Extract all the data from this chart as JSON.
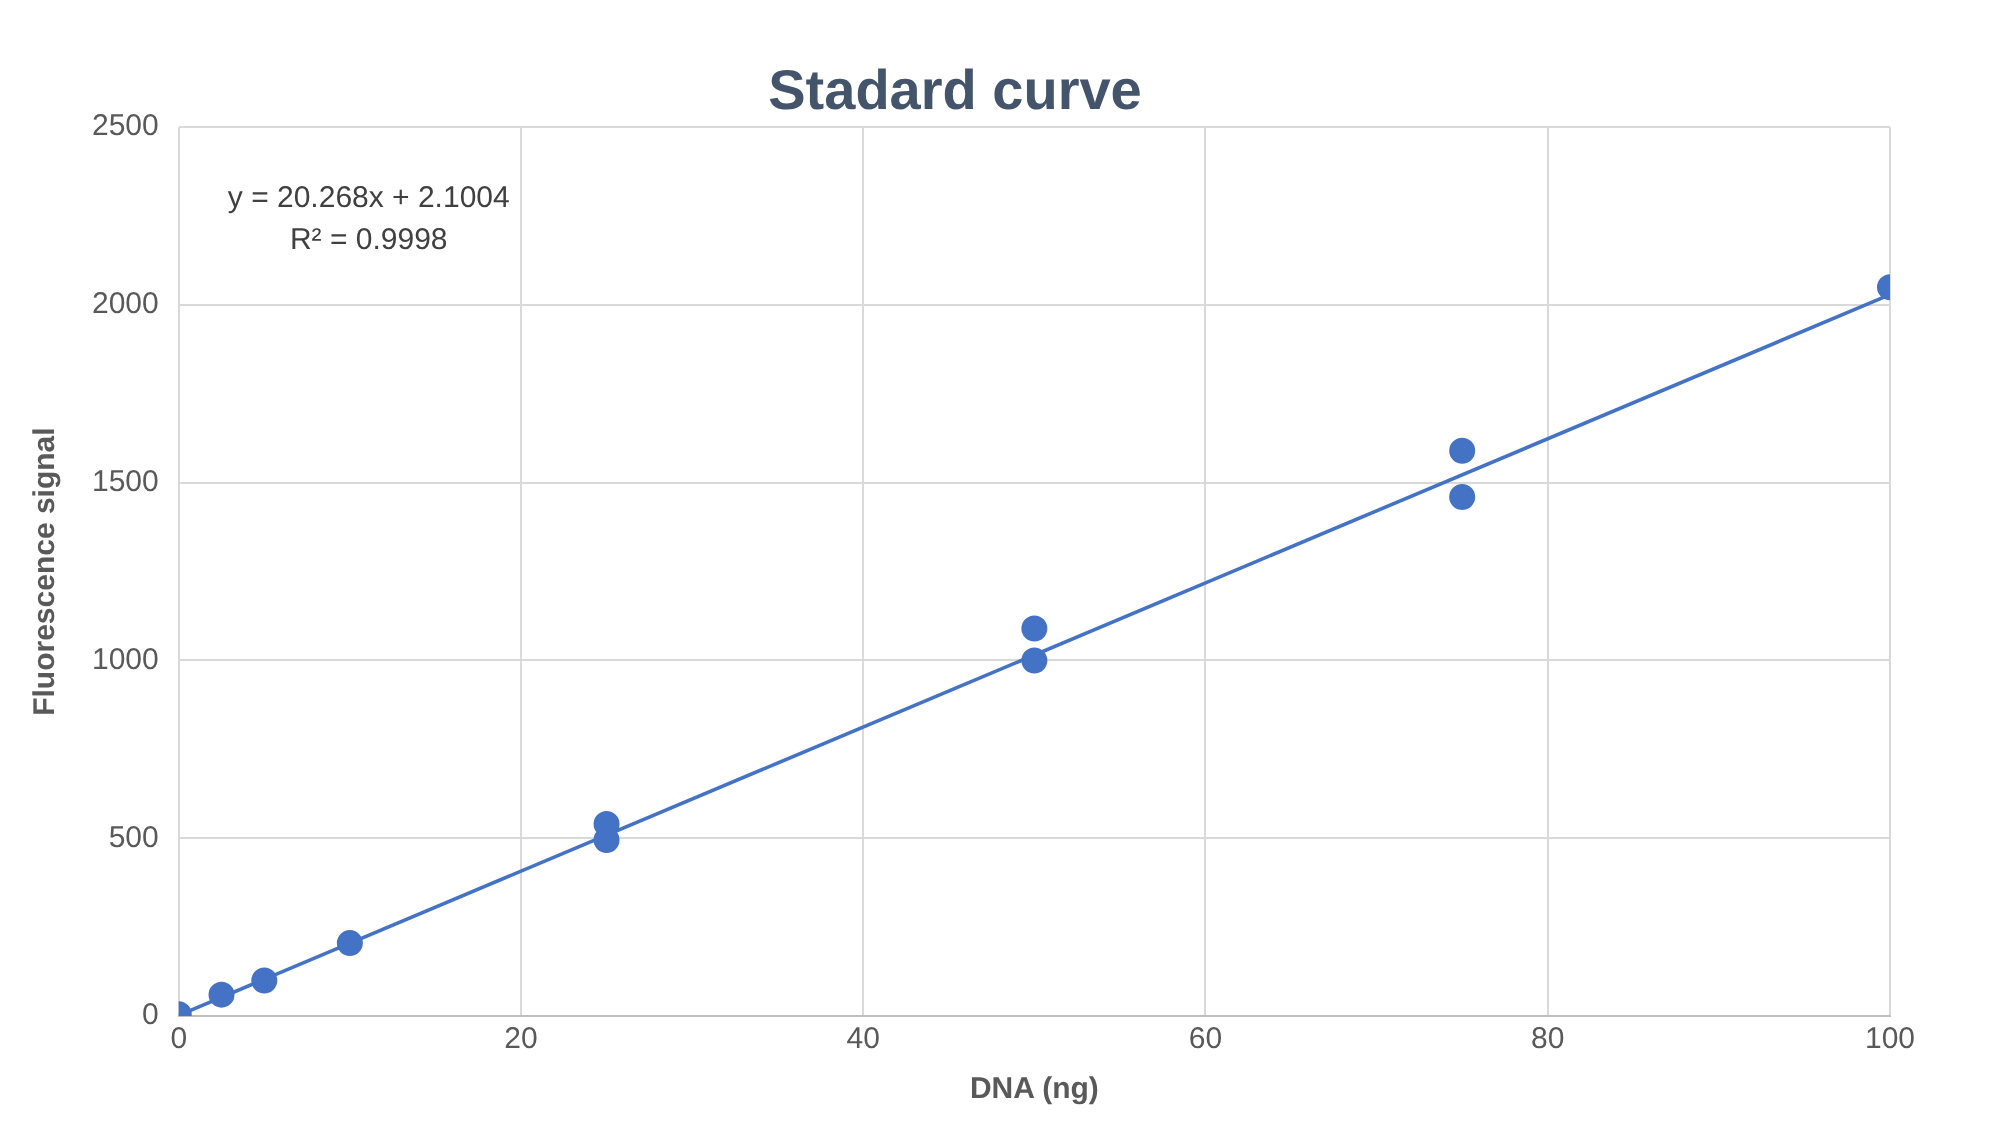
{
  "chart_data": {
    "type": "scatter",
    "title": "Stadard curve",
    "xlabel": "DNA (ng)",
    "ylabel": "Fluorescence signal",
    "annotations": [
      "y = 20.268x + 2.1004",
      "R² = 0.9998"
    ],
    "series": [
      {
        "color": "#4472c4",
        "marker": "circle",
        "x": [
          0,
          2.5,
          5,
          10,
          25,
          25,
          50,
          50,
          75,
          75,
          100
        ],
        "values": [
          5,
          60,
          100,
          205,
          540,
          495,
          1090,
          1000,
          1590,
          1460,
          2050
        ]
      },
      {
        "type": "line",
        "color": "#4472c4",
        "marker": "none",
        "x": [
          0,
          100
        ],
        "values": [
          2,
          2029
        ]
      }
    ],
    "xlim": [
      0,
      100
    ],
    "xticks": [
      0,
      20,
      40,
      60,
      80,
      100
    ],
    "ylim": [
      0,
      2500
    ],
    "yticks": [
      0,
      500,
      1000,
      1500,
      2000,
      2500
    ],
    "grid": true,
    "legend": false
  }
}
